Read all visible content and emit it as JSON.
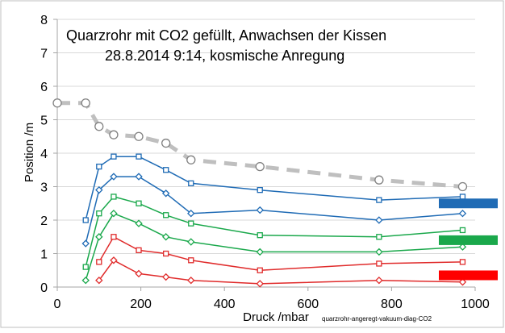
{
  "chart_data": {
    "type": "line",
    "title_line1": "Quarzrohr mit CO2 gefüllt, Anwachsen der Kissen",
    "title_line2": "28.8.2014  9:14, kosmische Anregung",
    "xlabel": "Druck /mbar",
    "ylabel": "Position /m",
    "source_note": "quarzrohr-angeregt-vakuum-diag-CO2",
    "xlim": [
      0,
      1000
    ],
    "ylim": [
      0,
      8
    ],
    "x_ticks": [
      0,
      200,
      400,
      600,
      800,
      1000
    ],
    "y_ticks": [
      0,
      1,
      2,
      3,
      4,
      5,
      6,
      7,
      8
    ],
    "grid": "horizontal",
    "x_labels": [
      "0",
      "200",
      "400",
      "600",
      "800",
      "1000"
    ],
    "y_labels": [
      "0",
      "1",
      "2",
      "3",
      "4",
      "5",
      "6",
      "7",
      "8"
    ],
    "series": [
      {
        "color": "#bfbfbf",
        "marker": "circle",
        "dashed": true,
        "x": [
          0,
          68,
          100,
          135,
          195,
          260,
          320,
          485,
          770,
          970
        ],
        "y": [
          5.5,
          5.5,
          4.8,
          4.55,
          4.5,
          4.3,
          3.8,
          3.6,
          3.2,
          3.0
        ]
      },
      {
        "color": "#1f6bb5",
        "marker": "square",
        "x": [
          68,
          100,
          135,
          195,
          260,
          320,
          485,
          770,
          970
        ],
        "y": [
          2.0,
          3.6,
          3.9,
          3.9,
          3.5,
          3.1,
          2.9,
          2.6,
          2.7
        ]
      },
      {
        "color": "#1f6bb5",
        "marker": "diamond",
        "x": [
          68,
          100,
          135,
          195,
          260,
          320,
          485,
          770,
          970
        ],
        "y": [
          1.3,
          2.9,
          3.3,
          3.3,
          2.8,
          2.2,
          2.3,
          2.0,
          2.2
        ]
      },
      {
        "color": "#1aa84b",
        "marker": "square",
        "x": [
          68,
          100,
          135,
          195,
          260,
          320,
          485,
          770,
          970
        ],
        "y": [
          0.6,
          2.2,
          2.7,
          2.5,
          2.15,
          1.9,
          1.55,
          1.5,
          1.7
        ]
      },
      {
        "color": "#1aa84b",
        "marker": "diamond",
        "x": [
          68,
          100,
          135,
          195,
          260,
          320,
          485,
          770,
          970
        ],
        "y": [
          0.2,
          1.5,
          2.2,
          1.9,
          1.5,
          1.35,
          1.05,
          1.05,
          1.2
        ]
      },
      {
        "color": "#e02b2b",
        "marker": "square",
        "x": [
          100,
          135,
          195,
          260,
          320,
          485,
          770,
          970
        ],
        "y": [
          0.75,
          1.5,
          1.1,
          1.0,
          0.8,
          0.5,
          0.7,
          0.75
        ]
      },
      {
        "color": "#e02b2b",
        "marker": "diamond",
        "x": [
          100,
          135,
          195,
          260,
          320,
          485,
          770,
          970
        ],
        "y": [
          0.2,
          0.8,
          0.4,
          0.3,
          0.2,
          0.1,
          0.2,
          0.15
        ]
      }
    ],
    "legend_bars": [
      {
        "color": "#1f6bb5",
        "y": 2.5
      },
      {
        "color": "#1aa84b",
        "y": 1.4
      },
      {
        "color": "#ff0000",
        "y": 0.35
      }
    ]
  }
}
